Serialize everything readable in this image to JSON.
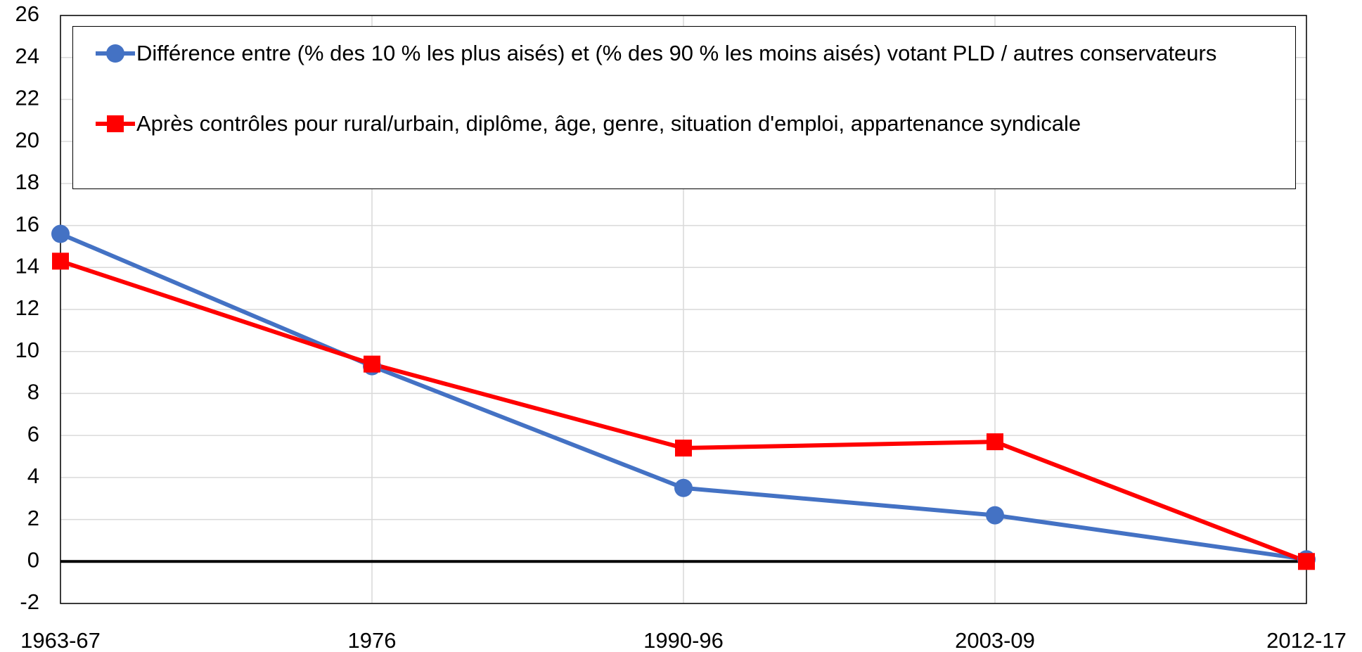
{
  "chart_data": {
    "type": "line",
    "categories": [
      "1963-67",
      "1976",
      "1990-96",
      "2003-09",
      "2012-17"
    ],
    "series": [
      {
        "name": "Différence entre (% des 10 % les plus aisés) et (% des 90 % les moins aisés) votant PLD / autres conservateurs",
        "color": "#4472c4",
        "marker": "circle",
        "values": [
          15.6,
          9.3,
          3.5,
          2.2,
          0.1
        ]
      },
      {
        "name": "Après contrôles pour rural/urbain, diplôme, âge, genre, situation d'emploi, appartenance syndicale",
        "color": "#ff0000",
        "marker": "square",
        "values": [
          14.3,
          9.4,
          5.4,
          5.7,
          0
        ]
      }
    ],
    "ylim": [
      -2,
      26
    ],
    "yticks": [
      -2,
      0,
      2,
      4,
      6,
      8,
      10,
      12,
      14,
      16,
      18,
      20,
      22,
      24,
      26
    ],
    "grid": true
  }
}
